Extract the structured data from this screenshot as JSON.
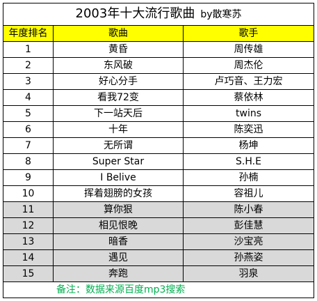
{
  "title": {
    "main": "2003年十大流行歌曲",
    "by": "by散寒苏"
  },
  "headers": [
    "年度排名",
    "歌曲",
    "歌手"
  ],
  "rows": [
    {
      "rank": "1",
      "song": "黄昏",
      "singer": "周传雄",
      "shaded": false
    },
    {
      "rank": "2",
      "song": "东风破",
      "singer": "周杰伦",
      "shaded": false
    },
    {
      "rank": "3",
      "song": "好心分手",
      "singer": "卢巧音、王力宏",
      "shaded": false
    },
    {
      "rank": "4",
      "song": "看我72变",
      "singer": "蔡依林",
      "shaded": false
    },
    {
      "rank": "5",
      "song": "下一站天后",
      "singer": "twins",
      "shaded": false
    },
    {
      "rank": "6",
      "song": "十年",
      "singer": "陈奕迅",
      "shaded": false
    },
    {
      "rank": "7",
      "song": "无所谓",
      "singer": "杨坤",
      "shaded": false
    },
    {
      "rank": "8",
      "song": "Super Star",
      "singer": "S.H.E",
      "shaded": false
    },
    {
      "rank": "9",
      "song": "I Belive",
      "singer": "孙楠",
      "shaded": false
    },
    {
      "rank": "10",
      "song": "挥着翅膀的女孩",
      "singer": "容祖儿",
      "shaded": false
    },
    {
      "rank": "11",
      "song": "算你狠",
      "singer": "陈小春",
      "shaded": true
    },
    {
      "rank": "12",
      "song": "相见恨晚",
      "singer": "彭佳慧",
      "shaded": true
    },
    {
      "rank": "13",
      "song": "暗香",
      "singer": "沙宝亮",
      "shaded": true
    },
    {
      "rank": "14",
      "song": "遇见",
      "singer": "孙燕姿",
      "shaded": true
    },
    {
      "rank": "15",
      "song": "奔跑",
      "singer": "羽泉",
      "shaded": true
    }
  ],
  "note": "备注：数据来源百度mp3搜索",
  "colors": {
    "header_bg": "#ffff00",
    "shaded_bg": "#d9d9d9",
    "note_text": "#00b050"
  }
}
